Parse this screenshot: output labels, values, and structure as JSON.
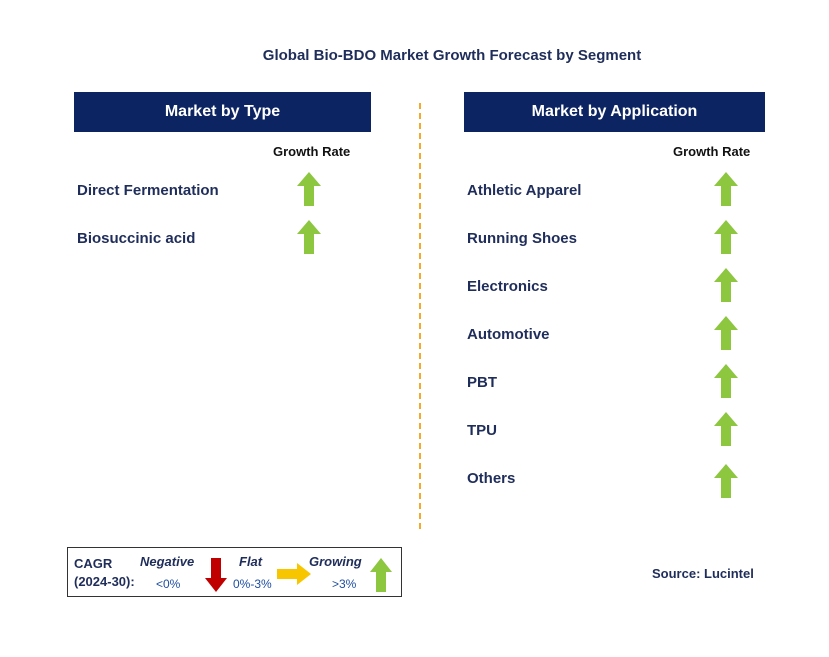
{
  "title": "Global Bio-BDO Market Growth Forecast by Segment",
  "left_panel": {
    "header": "Market by Type",
    "growth_rate_label": "Growth Rate",
    "items": [
      {
        "label": "Direct Fermentation",
        "trend": "growing"
      },
      {
        "label": "Biosuccinic acid",
        "trend": "growing"
      }
    ]
  },
  "right_panel": {
    "header": "Market by Application",
    "growth_rate_label": "Growth Rate",
    "items": [
      {
        "label": "Athletic Apparel",
        "trend": "growing"
      },
      {
        "label": "Running Shoes",
        "trend": "growing"
      },
      {
        "label": "Electronics",
        "trend": "growing"
      },
      {
        "label": "Automotive",
        "trend": "growing"
      },
      {
        "label": "PBT",
        "trend": "growing"
      },
      {
        "label": "TPU",
        "trend": "growing"
      },
      {
        "label": "Others",
        "trend": "growing"
      }
    ]
  },
  "legend": {
    "cagr_label": "CAGR",
    "cagr_period": "(2024-30):",
    "negative_label": "Negative",
    "negative_range": "<0%",
    "flat_label": "Flat",
    "flat_range": "0%-3%",
    "growing_label": "Growing",
    "growing_range": ">3%"
  },
  "source": "Source: Lucintel",
  "colors": {
    "header_bg": "#0c2461",
    "growing_arrow": "#8dc63f",
    "negative_arrow": "#c00000",
    "flat_arrow": "#f7c600",
    "divider": "#f4a92a"
  }
}
